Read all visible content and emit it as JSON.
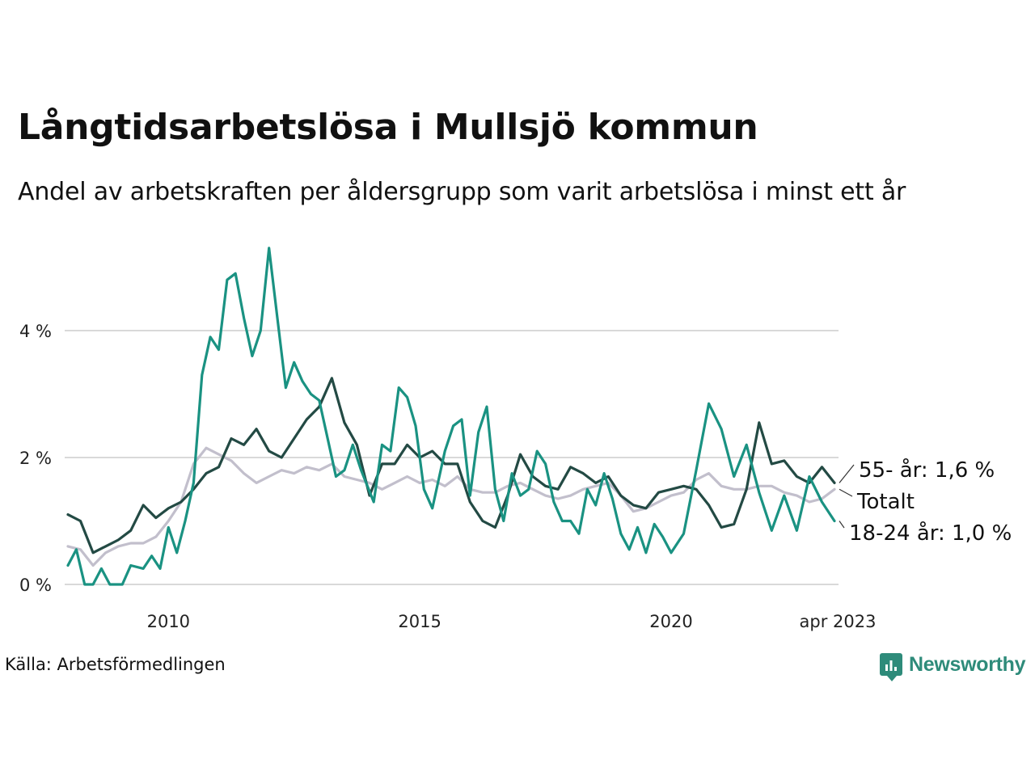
{
  "header": {
    "title": "Långtidsarbetslösa i Mullsjö kommun",
    "subtitle": "Andel av arbetskraften per åldersgrupp som varit arbetslösa i minst ett år"
  },
  "footer": {
    "source": "Källa: Arbetsförmedlingen",
    "brand": "Newsworthy"
  },
  "colors": {
    "series_55": "#234a44",
    "series_total": "#c2bfcc",
    "series_18_24": "#1a9282",
    "grid": "#d9d9d9",
    "brand": "#2e8b7a"
  },
  "icons": {
    "brand_logo": "bar-chart-speech-bubble-icon"
  },
  "chart_data": {
    "type": "line",
    "x_axis": {
      "range": [
        "2008-01",
        "2023-04"
      ],
      "ticks": [
        "2010",
        "2015",
        "2020",
        "apr 2023"
      ]
    },
    "y_axis": {
      "range": [
        0,
        5.5
      ],
      "ticks": [
        0,
        2,
        4
      ],
      "tick_labels": [
        "0 %",
        "2 %",
        "4 %"
      ]
    },
    "grid": "horizontal",
    "series": [
      {
        "name": "55- år",
        "label": "55- år: 1,6 %",
        "points": [
          [
            "2008-01",
            1.1
          ],
          [
            "2008-04",
            1.0
          ],
          [
            "2008-07",
            0.5
          ],
          [
            "2008-10",
            0.6
          ],
          [
            "2009-01",
            0.7
          ],
          [
            "2009-04",
            0.85
          ],
          [
            "2009-07",
            1.25
          ],
          [
            "2009-10",
            1.05
          ],
          [
            "2010-01",
            1.2
          ],
          [
            "2010-04",
            1.3
          ],
          [
            "2010-07",
            1.5
          ],
          [
            "2010-10",
            1.75
          ],
          [
            "2011-01",
            1.85
          ],
          [
            "2011-04",
            2.3
          ],
          [
            "2011-07",
            2.2
          ],
          [
            "2011-10",
            2.45
          ],
          [
            "2012-01",
            2.1
          ],
          [
            "2012-04",
            2.0
          ],
          [
            "2012-07",
            2.3
          ],
          [
            "2012-10",
            2.6
          ],
          [
            "2013-01",
            2.8
          ],
          [
            "2013-04",
            3.25
          ],
          [
            "2013-07",
            2.55
          ],
          [
            "2013-10",
            2.2
          ],
          [
            "2014-01",
            1.4
          ],
          [
            "2014-04",
            1.9
          ],
          [
            "2014-07",
            1.9
          ],
          [
            "2014-10",
            2.2
          ],
          [
            "2015-01",
            2.0
          ],
          [
            "2015-04",
            2.1
          ],
          [
            "2015-07",
            1.9
          ],
          [
            "2015-10",
            1.9
          ],
          [
            "2016-01",
            1.3
          ],
          [
            "2016-04",
            1.0
          ],
          [
            "2016-07",
            0.9
          ],
          [
            "2016-10",
            1.4
          ],
          [
            "2017-01",
            2.05
          ],
          [
            "2017-04",
            1.7
          ],
          [
            "2017-07",
            1.55
          ],
          [
            "2017-10",
            1.5
          ],
          [
            "2018-01",
            1.85
          ],
          [
            "2018-04",
            1.75
          ],
          [
            "2018-07",
            1.6
          ],
          [
            "2018-10",
            1.7
          ],
          [
            "2019-01",
            1.4
          ],
          [
            "2019-04",
            1.25
          ],
          [
            "2019-07",
            1.2
          ],
          [
            "2019-10",
            1.45
          ],
          [
            "2020-01",
            1.5
          ],
          [
            "2020-04",
            1.55
          ],
          [
            "2020-07",
            1.5
          ],
          [
            "2020-10",
            1.25
          ],
          [
            "2021-01",
            0.9
          ],
          [
            "2021-04",
            0.95
          ],
          [
            "2021-07",
            1.5
          ],
          [
            "2021-10",
            2.55
          ],
          [
            "2022-01",
            1.9
          ],
          [
            "2022-04",
            1.95
          ],
          [
            "2022-07",
            1.7
          ],
          [
            "2022-10",
            1.6
          ],
          [
            "2023-01",
            1.85
          ],
          [
            "2023-04",
            1.6
          ]
        ]
      },
      {
        "name": "Totalt",
        "label": "Totalt",
        "points": [
          [
            "2008-01",
            0.6
          ],
          [
            "2008-04",
            0.55
          ],
          [
            "2008-07",
            0.3
          ],
          [
            "2008-10",
            0.5
          ],
          [
            "2009-01",
            0.6
          ],
          [
            "2009-04",
            0.65
          ],
          [
            "2009-07",
            0.65
          ],
          [
            "2009-10",
            0.75
          ],
          [
            "2010-01",
            1.0
          ],
          [
            "2010-04",
            1.3
          ],
          [
            "2010-07",
            1.9
          ],
          [
            "2010-10",
            2.15
          ],
          [
            "2011-01",
            2.05
          ],
          [
            "2011-04",
            1.95
          ],
          [
            "2011-07",
            1.75
          ],
          [
            "2011-10",
            1.6
          ],
          [
            "2012-01",
            1.7
          ],
          [
            "2012-04",
            1.8
          ],
          [
            "2012-07",
            1.75
          ],
          [
            "2012-10",
            1.85
          ],
          [
            "2013-01",
            1.8
          ],
          [
            "2013-04",
            1.9
          ],
          [
            "2013-07",
            1.7
          ],
          [
            "2013-10",
            1.65
          ],
          [
            "2014-01",
            1.6
          ],
          [
            "2014-04",
            1.5
          ],
          [
            "2014-07",
            1.6
          ],
          [
            "2014-10",
            1.7
          ],
          [
            "2015-01",
            1.6
          ],
          [
            "2015-04",
            1.65
          ],
          [
            "2015-07",
            1.55
          ],
          [
            "2015-10",
            1.7
          ],
          [
            "2016-01",
            1.5
          ],
          [
            "2016-04",
            1.45
          ],
          [
            "2016-07",
            1.45
          ],
          [
            "2016-10",
            1.55
          ],
          [
            "2017-01",
            1.6
          ],
          [
            "2017-04",
            1.5
          ],
          [
            "2017-07",
            1.4
          ],
          [
            "2017-10",
            1.35
          ],
          [
            "2018-01",
            1.4
          ],
          [
            "2018-04",
            1.5
          ],
          [
            "2018-07",
            1.55
          ],
          [
            "2018-10",
            1.6
          ],
          [
            "2019-01",
            1.4
          ],
          [
            "2019-04",
            1.15
          ],
          [
            "2019-07",
            1.2
          ],
          [
            "2019-10",
            1.3
          ],
          [
            "2020-01",
            1.4
          ],
          [
            "2020-04",
            1.45
          ],
          [
            "2020-07",
            1.65
          ],
          [
            "2020-10",
            1.75
          ],
          [
            "2021-01",
            1.55
          ],
          [
            "2021-04",
            1.5
          ],
          [
            "2021-07",
            1.5
          ],
          [
            "2021-10",
            1.55
          ],
          [
            "2022-01",
            1.55
          ],
          [
            "2022-04",
            1.45
          ],
          [
            "2022-07",
            1.4
          ],
          [
            "2022-10",
            1.3
          ],
          [
            "2023-01",
            1.35
          ],
          [
            "2023-04",
            1.5
          ]
        ]
      },
      {
        "name": "18-24 år",
        "label": "18-24 år: 1,0 %",
        "points": [
          [
            "2008-01",
            0.3
          ],
          [
            "2008-03",
            0.55
          ],
          [
            "2008-05",
            0.0
          ],
          [
            "2008-07",
            0.0
          ],
          [
            "2008-09",
            0.25
          ],
          [
            "2008-11",
            0.0
          ],
          [
            "2009-02",
            0.0
          ],
          [
            "2009-04",
            0.3
          ],
          [
            "2009-07",
            0.25
          ],
          [
            "2009-09",
            0.45
          ],
          [
            "2009-11",
            0.25
          ],
          [
            "2010-01",
            0.9
          ],
          [
            "2010-03",
            0.5
          ],
          [
            "2010-05",
            1.0
          ],
          [
            "2010-07",
            1.6
          ],
          [
            "2010-09",
            3.3
          ],
          [
            "2010-11",
            3.9
          ],
          [
            "2011-01",
            3.7
          ],
          [
            "2011-03",
            4.8
          ],
          [
            "2011-05",
            4.9
          ],
          [
            "2011-07",
            4.2
          ],
          [
            "2011-09",
            3.6
          ],
          [
            "2011-11",
            4.0
          ],
          [
            "2012-01",
            5.3
          ],
          [
            "2012-03",
            4.2
          ],
          [
            "2012-05",
            3.1
          ],
          [
            "2012-07",
            3.5
          ],
          [
            "2012-09",
            3.2
          ],
          [
            "2012-11",
            3.0
          ],
          [
            "2013-01",
            2.9
          ],
          [
            "2013-03",
            2.3
          ],
          [
            "2013-05",
            1.7
          ],
          [
            "2013-07",
            1.8
          ],
          [
            "2013-09",
            2.2
          ],
          [
            "2013-11",
            1.8
          ],
          [
            "2014-02",
            1.3
          ],
          [
            "2014-04",
            2.2
          ],
          [
            "2014-06",
            2.1
          ],
          [
            "2014-08",
            3.1
          ],
          [
            "2014-10",
            2.95
          ],
          [
            "2014-12",
            2.5
          ],
          [
            "2015-02",
            1.5
          ],
          [
            "2015-04",
            1.2
          ],
          [
            "2015-07",
            2.1
          ],
          [
            "2015-09",
            2.5
          ],
          [
            "2015-11",
            2.6
          ],
          [
            "2016-01",
            1.4
          ],
          [
            "2016-03",
            2.4
          ],
          [
            "2016-05",
            2.8
          ],
          [
            "2016-07",
            1.5
          ],
          [
            "2016-09",
            1.0
          ],
          [
            "2016-11",
            1.75
          ],
          [
            "2017-01",
            1.4
          ],
          [
            "2017-03",
            1.5
          ],
          [
            "2017-05",
            2.1
          ],
          [
            "2017-07",
            1.9
          ],
          [
            "2017-09",
            1.3
          ],
          [
            "2017-11",
            1.0
          ],
          [
            "2018-01",
            1.0
          ],
          [
            "2018-03",
            0.8
          ],
          [
            "2018-05",
            1.5
          ],
          [
            "2018-07",
            1.25
          ],
          [
            "2018-09",
            1.75
          ],
          [
            "2018-11",
            1.35
          ],
          [
            "2019-01",
            0.8
          ],
          [
            "2019-03",
            0.55
          ],
          [
            "2019-05",
            0.9
          ],
          [
            "2019-07",
            0.5
          ],
          [
            "2019-09",
            0.95
          ],
          [
            "2019-11",
            0.75
          ],
          [
            "2020-01",
            0.5
          ],
          [
            "2020-04",
            0.8
          ],
          [
            "2020-07",
            1.8
          ],
          [
            "2020-10",
            2.85
          ],
          [
            "2021-01",
            2.45
          ],
          [
            "2021-04",
            1.7
          ],
          [
            "2021-07",
            2.2
          ],
          [
            "2021-10",
            1.45
          ],
          [
            "2022-01",
            0.85
          ],
          [
            "2022-04",
            1.4
          ],
          [
            "2022-07",
            0.85
          ],
          [
            "2022-10",
            1.7
          ],
          [
            "2023-01",
            1.3
          ],
          [
            "2023-04",
            1.0
          ]
        ]
      }
    ]
  }
}
